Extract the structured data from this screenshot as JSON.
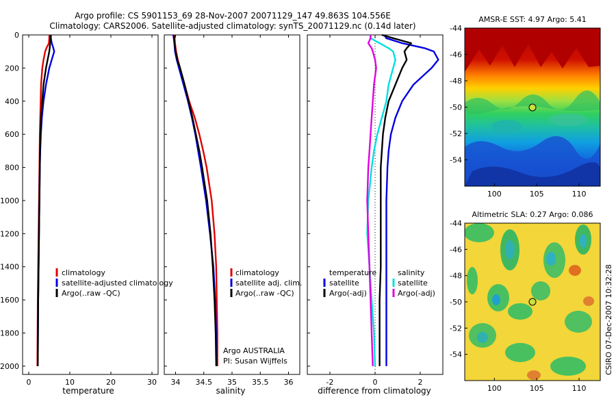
{
  "header": {
    "title_line1": "Argo profile: CS 5901153_69 28-Nov-2007 20071129_147 49.863S 104.556E",
    "title_line2": "Climatology: CARS2006. Satellite-adjusted climatology: synTS_20071129.nc (0.14d later)"
  },
  "colors": {
    "climatology": "#e00000",
    "satellite": "#0000e0",
    "argo": "#000000",
    "salinity_satellite": "#00e0e0",
    "salinity_argo": "#e000e0"
  },
  "depth_axis": {
    "ylim": [
      2050,
      0
    ],
    "ticks": [
      "0",
      "200",
      "400",
      "600",
      "800",
      "1000",
      "1200",
      "1400",
      "1600",
      "1800",
      "2000"
    ]
  },
  "chart_data": [
    {
      "type": "line",
      "id": "temperature",
      "xlabel": "temperature",
      "xlim": [
        -1.5,
        31.5
      ],
      "xticks": [
        "0",
        "10",
        "20",
        "30"
      ],
      "depth": [
        0,
        20,
        50,
        80,
        100,
        150,
        200,
        300,
        400,
        500,
        600,
        700,
        800,
        1000,
        1200,
        1400,
        1600,
        1800,
        2000
      ],
      "legend": [
        "climatology",
        "satellite-adjusted climatology",
        "Argo(..raw -QC)"
      ],
      "series": [
        {
          "name": "climatology",
          "color_key": "climatology",
          "values": [
            5.0,
            5.0,
            4.9,
            4.3,
            4.0,
            3.6,
            3.3,
            3.0,
            2.9,
            2.8,
            2.7,
            2.65,
            2.6,
            2.5,
            2.4,
            2.3,
            2.2,
            2.15,
            2.1
          ]
        },
        {
          "name": "satellite-adjusted climatology",
          "color_key": "satellite",
          "values": [
            5.4,
            5.4,
            5.6,
            6.0,
            6.2,
            5.6,
            5.0,
            4.2,
            3.6,
            3.2,
            2.95,
            2.8,
            2.7,
            2.6,
            2.5,
            2.4,
            2.3,
            2.25,
            2.2
          ]
        },
        {
          "name": "Argo(..raw -QC)",
          "color_key": "argo",
          "values": [
            5.3,
            5.3,
            5.2,
            5.1,
            5.0,
            4.6,
            4.2,
            3.6,
            3.3,
            3.0,
            2.85,
            2.75,
            2.7,
            2.6,
            2.5,
            2.4,
            2.3,
            2.25,
            2.2
          ]
        }
      ]
    },
    {
      "type": "line",
      "id": "salinity",
      "xlabel": "salinity",
      "xlim": [
        33.8,
        36.2
      ],
      "xticks": [
        "34",
        "34.5",
        "35",
        "35.5",
        "36"
      ],
      "depth": [
        0,
        50,
        100,
        150,
        200,
        300,
        400,
        500,
        600,
        700,
        800,
        1000,
        1200,
        1400,
        1600,
        1800,
        2000
      ],
      "legend": [
        "climatology",
        "satellite adj. clim.",
        "Argo(..raw -QC)"
      ],
      "annotation": [
        "Argo AUSTRALIA",
        "PI: Susan Wijffels"
      ],
      "series": [
        {
          "name": "climatology",
          "color_key": "climatology",
          "values": [
            33.98,
            33.99,
            34.01,
            34.04,
            34.08,
            34.16,
            34.24,
            34.34,
            34.42,
            34.49,
            34.55,
            34.64,
            34.69,
            34.72,
            34.73,
            34.74,
            34.74
          ]
        },
        {
          "name": "satellite adj. clim.",
          "color_key": "satellite",
          "values": [
            33.96,
            33.98,
            33.99,
            34.02,
            34.06,
            34.14,
            34.22,
            34.29,
            34.35,
            34.4,
            34.45,
            34.54,
            34.61,
            34.67,
            34.7,
            34.72,
            34.73
          ]
        },
        {
          "name": "Argo(..raw -QC)",
          "color_key": "argo",
          "values": [
            33.97,
            33.98,
            34.0,
            34.03,
            34.08,
            34.16,
            34.23,
            34.3,
            34.36,
            34.42,
            34.47,
            34.56,
            34.62,
            34.66,
            34.69,
            34.71,
            34.72
          ]
        }
      ]
    },
    {
      "type": "line",
      "id": "difference",
      "xlabel": "difference from climatology",
      "xlim": [
        -3.0,
        3.0
      ],
      "xticks": [
        "-2",
        "0",
        "2"
      ],
      "depth": [
        0,
        20,
        50,
        80,
        100,
        150,
        200,
        300,
        400,
        500,
        600,
        700,
        800,
        1000,
        1200,
        1400,
        1600,
        1800,
        2000
      ],
      "legend_titles": [
        "temperature",
        "salinity"
      ],
      "legend": [
        "satellite",
        "Argo(-adj)",
        "satellite",
        "Argo(-adj)"
      ],
      "series": [
        {
          "name": "satellite",
          "group": "temperature",
          "color_key": "satellite",
          "values": [
            0.4,
            0.5,
            1.2,
            2.2,
            2.6,
            2.8,
            2.5,
            1.7,
            1.2,
            0.9,
            0.7,
            0.6,
            0.55,
            0.5,
            0.5,
            0.5,
            0.5,
            0.5,
            0.5
          ]
        },
        {
          "name": "Argo(-adj)",
          "group": "temperature",
          "color_key": "argo",
          "values": [
            0.3,
            0.8,
            1.6,
            1.4,
            1.3,
            1.4,
            1.2,
            0.9,
            0.6,
            0.45,
            0.35,
            0.3,
            0.25,
            0.25,
            0.25,
            0.25,
            0.2,
            0.2,
            0.2
          ]
        },
        {
          "name": "satellite",
          "group": "salinity",
          "color_key": "salinity_satellite",
          "values": [
            -0.2,
            -0.2,
            0.2,
            0.6,
            0.8,
            0.9,
            0.8,
            0.6,
            0.5,
            0.3,
            0.1,
            -0.05,
            -0.15,
            -0.3,
            -0.35,
            -0.25,
            -0.15,
            -0.05,
            0.0
          ]
        },
        {
          "name": "Argo(-adj)",
          "group": "salinity",
          "color_key": "salinity_argo",
          "values": [
            -0.2,
            -0.2,
            -0.3,
            -0.15,
            -0.1,
            0.0,
            0.05,
            -0.05,
            -0.1,
            -0.15,
            -0.2,
            -0.25,
            -0.3,
            -0.35,
            -0.3,
            -0.25,
            -0.2,
            -0.15,
            -0.1
          ]
        }
      ]
    },
    {
      "type": "heatmap",
      "id": "sst-map",
      "title": "AMSR-E SST: 4.97  Argo: 5.41",
      "xticks": [
        "100",
        "105",
        "110"
      ],
      "yticks": [
        "-44",
        "-46",
        "-48",
        "-50",
        "-52",
        "-54"
      ],
      "xlim": [
        96.5,
        112.5
      ],
      "ylim": [
        -56,
        -44
      ],
      "marker": {
        "lon": 104.556,
        "lat": -49.863
      }
    },
    {
      "type": "heatmap",
      "id": "sla-map",
      "title": "Altimetric SLA: 0.27  Argo: 0.086",
      "xticks": [
        "100",
        "105",
        "110"
      ],
      "yticks": [
        "-44",
        "-46",
        "-48",
        "-50",
        "-52",
        "-54"
      ],
      "xlim": [
        96.5,
        112.5
      ],
      "ylim": [
        -56,
        -44
      ],
      "marker": {
        "lon": 104.556,
        "lat": -49.863
      }
    }
  ],
  "footer_vertical": "CSIRO 07-Dec-2007 10:32:28"
}
